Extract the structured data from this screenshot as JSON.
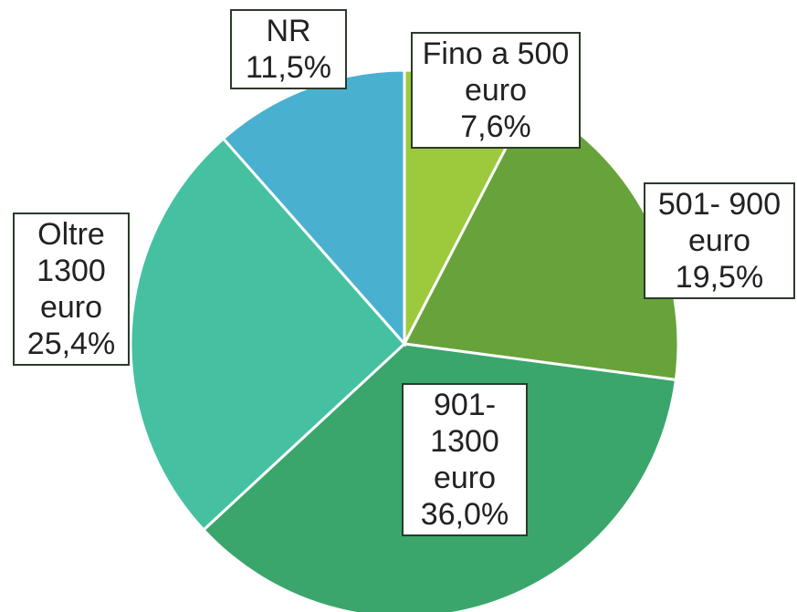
{
  "chart_data": {
    "type": "pie",
    "categories": [
      "Fino a 500 euro",
      "501- 900 euro",
      "901-1300 euro",
      "Oltre 1300 euro",
      "NR"
    ],
    "values": [
      7.6,
      19.5,
      36.0,
      25.4,
      11.5
    ],
    "value_labels": [
      "7,6%",
      "19,5%",
      "36,0%",
      "25,4%",
      "11,5%"
    ],
    "colors": [
      "#9dc93c",
      "#67a33a",
      "#3aa66b",
      "#45c1a1",
      "#4ab0d0"
    ]
  }
}
